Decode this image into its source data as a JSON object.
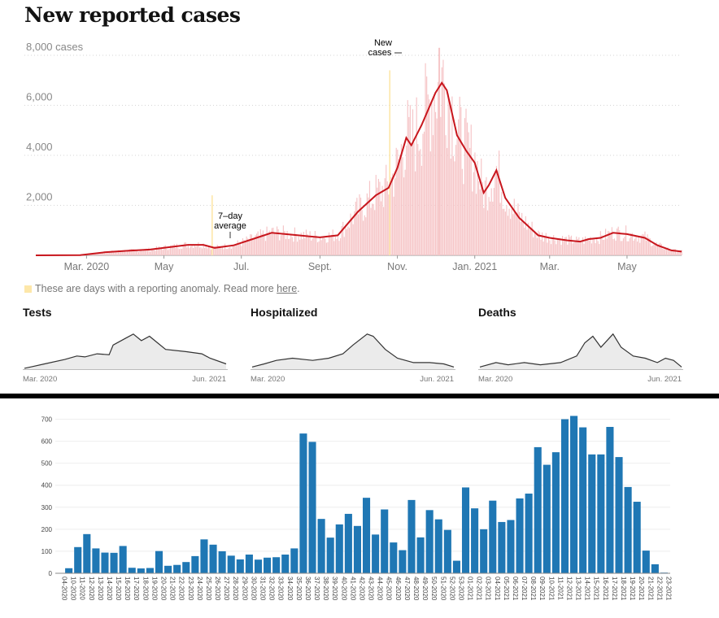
{
  "page_title": "New reported cases",
  "note": {
    "text": "These are days with a reporting anomaly. Read more ",
    "link": "here",
    "end": "."
  },
  "colors": {
    "bar_pink": "#f6c6c8",
    "line_red": "#c8161d",
    "anomaly": "#fde7a9",
    "small_fill": "#ebebeb",
    "small_line": "#333333",
    "weekly_bar": "#1f77b4"
  },
  "chart_data": [
    {
      "type": "line",
      "title": "New reported cases",
      "y_unit_label": "8,000 cases",
      "yticks": [
        8000,
        6000,
        4000,
        2000
      ],
      "ytick_labels": [
        "8,000 cases",
        "6,000",
        "4,000",
        "2,000"
      ],
      "ylim": [
        0,
        8000
      ],
      "xlim": [
        "2020-01-21",
        "2021-06-13"
      ],
      "xticks": [
        "2020-03-01",
        "2020-05-01",
        "2020-07-01",
        "2020-09-01",
        "2020-11-01",
        "2021-01-01",
        "2021-03-01",
        "2021-05-01"
      ],
      "xtick_labels": [
        "Mar. 2020",
        "May",
        "Jul.",
        "Sept.",
        "Nov.",
        "Jan. 2021",
        "Mar.",
        "May"
      ],
      "annotations": [
        "New cases",
        "7–day average"
      ],
      "series": [
        {
          "name": "7–day average",
          "points": [
            [
              "2020-01-21",
              0
            ],
            [
              "2020-02-25",
              10
            ],
            [
              "2020-03-15",
              120
            ],
            [
              "2020-04-01",
              180
            ],
            [
              "2020-04-20",
              230
            ],
            [
              "2020-05-01",
              300
            ],
            [
              "2020-05-20",
              420
            ],
            [
              "2020-06-01",
              420
            ],
            [
              "2020-06-10",
              300
            ],
            [
              "2020-06-25",
              400
            ],
            [
              "2020-07-10",
              650
            ],
            [
              "2020-07-25",
              900
            ],
            [
              "2020-08-15",
              800
            ],
            [
              "2020-09-01",
              720
            ],
            [
              "2020-09-15",
              800
            ],
            [
              "2020-10-01",
              1750
            ],
            [
              "2020-10-15",
              2400
            ],
            [
              "2020-10-25",
              2700
            ],
            [
              "2020-11-01",
              3500
            ],
            [
              "2020-11-08",
              4700
            ],
            [
              "2020-11-12",
              4400
            ],
            [
              "2020-11-20",
              5200
            ],
            [
              "2020-12-01",
              6500
            ],
            [
              "2020-12-06",
              6900
            ],
            [
              "2020-12-10",
              6600
            ],
            [
              "2020-12-18",
              4800
            ],
            [
              "2020-12-25",
              4200
            ],
            [
              "2021-01-01",
              3700
            ],
            [
              "2021-01-08",
              2500
            ],
            [
              "2021-01-12",
              2800
            ],
            [
              "2021-01-18",
              3400
            ],
            [
              "2021-01-25",
              2300
            ],
            [
              "2021-02-05",
              1500
            ],
            [
              "2021-02-20",
              800
            ],
            [
              "2021-03-01",
              700
            ],
            [
              "2021-03-15",
              600
            ],
            [
              "2021-03-25",
              550
            ],
            [
              "2021-04-01",
              650
            ],
            [
              "2021-04-10",
              700
            ],
            [
              "2021-04-20",
              900
            ],
            [
              "2021-05-01",
              850
            ],
            [
              "2021-05-15",
              700
            ],
            [
              "2021-05-25",
              400
            ],
            [
              "2021-06-05",
              200
            ],
            [
              "2021-06-13",
              150
            ]
          ]
        },
        {
          "name": "New cases",
          "type": "bar",
          "description": "daily reported cases",
          "peak": 8300
        },
        {
          "name": "Anomaly days",
          "points": [
            [
              "2020-06-08",
              2400
            ],
            [
              "2020-10-26",
              7400
            ]
          ]
        }
      ]
    },
    {
      "type": "area",
      "title": "Tests",
      "xtick_labels": [
        "Mar. 2020",
        "Jun. 2021"
      ],
      "points": [
        [
          0,
          0.02
        ],
        [
          0.04,
          0.06
        ],
        [
          0.1,
          0.12
        ],
        [
          0.2,
          0.22
        ],
        [
          0.26,
          0.3
        ],
        [
          0.3,
          0.28
        ],
        [
          0.36,
          0.35
        ],
        [
          0.42,
          0.33
        ],
        [
          0.44,
          0.55
        ],
        [
          0.5,
          0.7
        ],
        [
          0.54,
          0.8
        ],
        [
          0.58,
          0.65
        ],
        [
          0.62,
          0.75
        ],
        [
          0.66,
          0.6
        ],
        [
          0.7,
          0.45
        ],
        [
          0.8,
          0.4
        ],
        [
          0.88,
          0.35
        ],
        [
          0.92,
          0.25
        ],
        [
          1,
          0.12
        ]
      ]
    },
    {
      "type": "area",
      "title": "Hospitalized",
      "xtick_labels": [
        "Mar. 2020",
        "Jun. 2021"
      ],
      "points": [
        [
          0,
          0.05
        ],
        [
          0.06,
          0.12
        ],
        [
          0.12,
          0.2
        ],
        [
          0.2,
          0.25
        ],
        [
          0.3,
          0.2
        ],
        [
          0.38,
          0.25
        ],
        [
          0.45,
          0.35
        ],
        [
          0.5,
          0.55
        ],
        [
          0.57,
          0.8
        ],
        [
          0.6,
          0.75
        ],
        [
          0.66,
          0.45
        ],
        [
          0.72,
          0.25
        ],
        [
          0.8,
          0.15
        ],
        [
          0.88,
          0.15
        ],
        [
          0.95,
          0.12
        ],
        [
          1,
          0.05
        ]
      ]
    },
    {
      "type": "area",
      "title": "Deaths",
      "xtick_labels": [
        "Mar. 2020",
        "Jun. 2021"
      ],
      "points": [
        [
          0,
          0.05
        ],
        [
          0.08,
          0.15
        ],
        [
          0.14,
          0.1
        ],
        [
          0.22,
          0.15
        ],
        [
          0.3,
          0.1
        ],
        [
          0.4,
          0.15
        ],
        [
          0.48,
          0.3
        ],
        [
          0.52,
          0.6
        ],
        [
          0.56,
          0.75
        ],
        [
          0.6,
          0.5
        ],
        [
          0.66,
          0.8
        ],
        [
          0.7,
          0.5
        ],
        [
          0.76,
          0.3
        ],
        [
          0.82,
          0.25
        ],
        [
          0.88,
          0.15
        ],
        [
          0.92,
          0.25
        ],
        [
          0.96,
          0.2
        ],
        [
          1,
          0.05
        ]
      ]
    },
    {
      "type": "bar",
      "ylim": [
        0,
        750
      ],
      "yticks": [
        0,
        100,
        200,
        300,
        400,
        500,
        600,
        700
      ],
      "categories": [
        "04-2020",
        "10-2020",
        "11-2020",
        "12-2020",
        "13-2020",
        "14-2020",
        "15-2020",
        "16-2020",
        "17-2020",
        "18-2020",
        "19-2020",
        "20-2020",
        "21-2020",
        "22-2020",
        "23-2020",
        "24-2020",
        "25-2020",
        "26-2020",
        "27-2020",
        "28-2020",
        "29-2020",
        "30-2020",
        "31-2020",
        "32-2020",
        "33-2020",
        "34-2020",
        "35-2020",
        "36-2020",
        "37-2020",
        "38-2020",
        "39-2020",
        "40-2020",
        "41-2020",
        "42-2020",
        "43-2020",
        "44-2020",
        "45-2020",
        "46-2020",
        "47-2020",
        "48-2020",
        "49-2020",
        "50-2020",
        "51-2020",
        "52-2020",
        "53-2020",
        "01-2021",
        "02-2021",
        "03-2021",
        "04-2021",
        "05-2021",
        "06-2021",
        "07-2021",
        "08-2021",
        "09-2021",
        "10-2021",
        "11-2021",
        "12-2021",
        "13-2021",
        "14-2021",
        "15-2021",
        "16-2021",
        "17-2021",
        "18-2021",
        "19-2021",
        "20-2021",
        "21-2021",
        "22-2021",
        "23-2021"
      ],
      "values": [
        1,
        23,
        119,
        178,
        113,
        94,
        93,
        124,
        25,
        22,
        24,
        101,
        34,
        38,
        51,
        78,
        154,
        130,
        100,
        80,
        63,
        85,
        62,
        71,
        73,
        85,
        113,
        635,
        597,
        247,
        162,
        222,
        270,
        215,
        343,
        176,
        290,
        140,
        105,
        333,
        163,
        287,
        245,
        197,
        57,
        390,
        295,
        200,
        330,
        233,
        242,
        340,
        362,
        573,
        493,
        550,
        700,
        715,
        663,
        540,
        540,
        665,
        528,
        392,
        325,
        103,
        41,
        3
      ]
    }
  ]
}
